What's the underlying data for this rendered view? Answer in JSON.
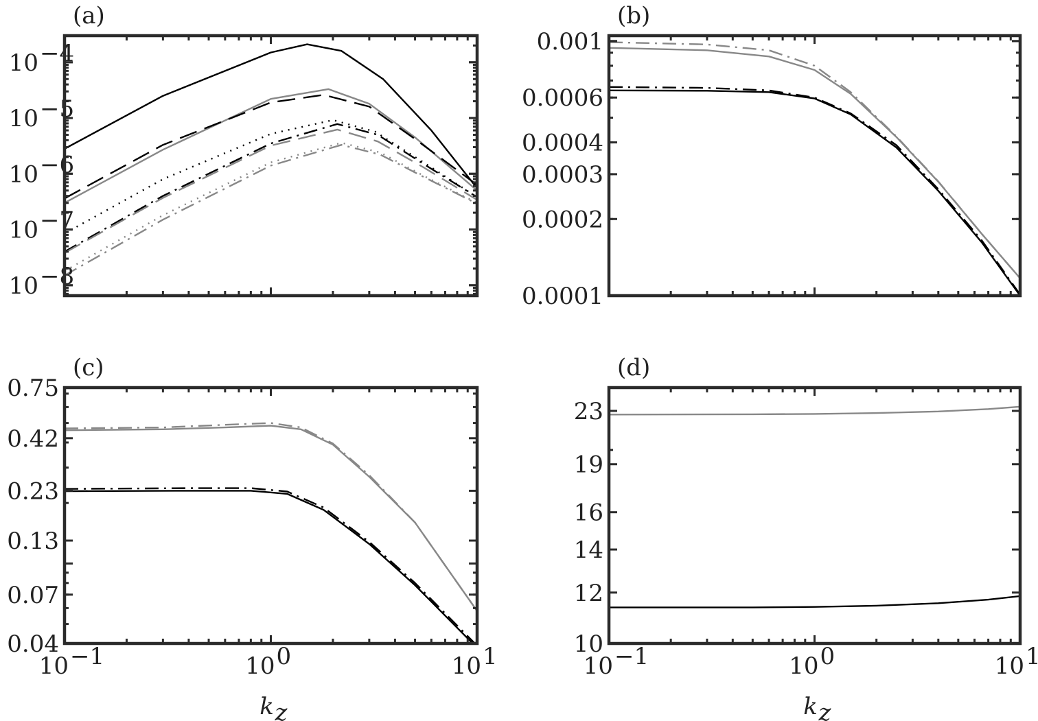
{
  "chart_data": [
    {
      "panel": "(a)",
      "type": "line",
      "xscale": "log",
      "yscale": "log",
      "xlim": [
        0.1,
        10
      ],
      "ylim": [
        6.5e-09,
        0.0003
      ],
      "xlabel": "",
      "ylabel": "",
      "yticks": [
        {
          "value": 0.0001,
          "label": "10",
          "exp": "−4"
        },
        {
          "value": 1e-05,
          "label": "10",
          "exp": "−5"
        },
        {
          "value": 1e-06,
          "label": "10",
          "exp": "−6"
        },
        {
          "value": 1e-07,
          "label": "10",
          "exp": "−7"
        },
        {
          "value": 1e-08,
          "label": "10",
          "exp": "−8"
        }
      ],
      "xticks": [],
      "series": [
        {
          "name": "black-solid",
          "color": "#000000",
          "dash": "",
          "points": [
            [
              0.1,
              2.8e-06
            ],
            [
              0.3,
              2.5e-05
            ],
            [
              1.0,
              0.00015
            ],
            [
              1.5,
              0.00021
            ],
            [
              2.2,
              0.00016
            ],
            [
              3.5,
              5e-05
            ],
            [
              6.0,
              6e-06
            ],
            [
              10,
              5.5e-07
            ]
          ]
        },
        {
          "name": "gray-solid",
          "color": "#888888",
          "dash": "",
          "points": [
            [
              0.1,
              3e-07
            ],
            [
              0.3,
              2.7e-06
            ],
            [
              1.0,
              2.2e-05
            ],
            [
              1.9,
              3.3e-05
            ],
            [
              3.0,
              1.8e-05
            ],
            [
              5.0,
              4.5e-06
            ],
            [
              10,
              5e-07
            ]
          ]
        },
        {
          "name": "black-dashed",
          "color": "#000000",
          "dash": "26 12",
          "points": [
            [
              0.1,
              3.6e-07
            ],
            [
              0.3,
              3.3e-06
            ],
            [
              1.0,
              1.9e-05
            ],
            [
              1.8,
              2.6e-05
            ],
            [
              3.0,
              1.6e-05
            ],
            [
              5.0,
              4.2e-06
            ],
            [
              10,
              6.3e-07
            ]
          ]
        },
        {
          "name": "black-dotted",
          "color": "#000000",
          "dash": "2 8",
          "points": [
            [
              0.1,
              8.5e-08
            ],
            [
              0.3,
              8e-07
            ],
            [
              1.0,
              5.2e-06
            ],
            [
              2.0,
              9.2e-06
            ],
            [
              3.2,
              5.7e-06
            ],
            [
              5.5,
              1.6e-06
            ],
            [
              10,
              3.8e-07
            ]
          ]
        },
        {
          "name": "black-dashdot",
          "color": "#000000",
          "dash": "20 8 3 8",
          "points": [
            [
              0.1,
              4e-08
            ],
            [
              0.3,
              4e-07
            ],
            [
              1.0,
              3.5e-06
            ],
            [
              2.1,
              7.8e-06
            ],
            [
              3.3,
              5e-06
            ],
            [
              5.5,
              1.5e-06
            ],
            [
              10,
              3.8e-07
            ]
          ]
        },
        {
          "name": "gray-dashed",
          "color": "#888888",
          "dash": "26 12",
          "points": [
            [
              0.1,
              3.8e-08
            ],
            [
              0.3,
              3.7e-07
            ],
            [
              1.0,
              3.2e-06
            ],
            [
              2.1,
              6.2e-06
            ],
            [
              3.3,
              3.8e-06
            ],
            [
              5.5,
              1.3e-06
            ],
            [
              10,
              3.4e-07
            ]
          ]
        },
        {
          "name": "gray-dotted",
          "color": "#888888",
          "dash": "2 8",
          "points": [
            [
              0.1,
              1.8e-08
            ],
            [
              0.3,
              1.8e-07
            ],
            [
              1.0,
              1.6e-06
            ],
            [
              2.2,
              3.6e-06
            ],
            [
              3.4,
              2.4e-06
            ],
            [
              5.5,
              9.2e-07
            ],
            [
              10,
              3e-07
            ]
          ]
        },
        {
          "name": "gray-dashdot",
          "color": "#888888",
          "dash": "20 8 3 8",
          "points": [
            [
              0.1,
              1.5e-08
            ],
            [
              0.3,
              1.5e-07
            ],
            [
              1.0,
              1.4e-06
            ],
            [
              2.2,
              3.3e-06
            ],
            [
              3.4,
              2.2e-06
            ],
            [
              5.5,
              8.8e-07
            ],
            [
              10,
              2.9e-07
            ]
          ]
        }
      ]
    },
    {
      "panel": "(b)",
      "type": "line",
      "xscale": "log",
      "yscale": "log",
      "xlim": [
        0.1,
        10
      ],
      "ylim": [
        0.0001,
        0.00105
      ],
      "xlabel": "",
      "ylabel": "",
      "yticks": [
        {
          "value": 0.001,
          "label": "0.001"
        },
        {
          "value": 0.0006,
          "label": "0.0006"
        },
        {
          "value": 0.0004,
          "label": "0.0004"
        },
        {
          "value": 0.0003,
          "label": "0.0003"
        },
        {
          "value": 0.0002,
          "label": "0.0002"
        },
        {
          "value": 0.0001,
          "label": "0.0001"
        }
      ],
      "xticks": [],
      "series": [
        {
          "name": "gray-solid",
          "color": "#888888",
          "dash": "",
          "points": [
            [
              0.1,
              0.00094
            ],
            [
              0.3,
              0.00092
            ],
            [
              0.6,
              0.00087
            ],
            [
              1.0,
              0.00077
            ],
            [
              1.5,
              0.00062
            ],
            [
              2.5,
              0.00042
            ],
            [
              4.0,
              0.00028
            ],
            [
              6.5,
              0.000175
            ],
            [
              10,
              0.000117
            ]
          ]
        },
        {
          "name": "gray-dashdot",
          "color": "#888888",
          "dash": "20 8 3 8",
          "points": [
            [
              0.1,
              0.00099
            ],
            [
              0.3,
              0.00097
            ],
            [
              0.6,
              0.00092
            ],
            [
              1.0,
              0.0008
            ],
            [
              1.5,
              0.00063
            ],
            [
              2.5,
              0.000422
            ],
            [
              4.0,
              0.000281
            ],
            [
              6.5,
              0.000175
            ],
            [
              10,
              0.000117
            ]
          ]
        },
        {
          "name": "black-dashdot",
          "color": "#000000",
          "dash": "20 8 3 8",
          "points": [
            [
              0.1,
              0.00066
            ],
            [
              0.3,
              0.000655
            ],
            [
              0.6,
              0.00064
            ],
            [
              1.0,
              0.0006
            ],
            [
              1.5,
              0.00052
            ],
            [
              2.5,
              0.00039
            ],
            [
              4.0,
              0.000262
            ],
            [
              6.5,
              0.000165
            ],
            [
              10,
              0.000101
            ]
          ]
        },
        {
          "name": "black-solid",
          "color": "#000000",
          "dash": "",
          "points": [
            [
              0.1,
              0.00064
            ],
            [
              0.3,
              0.000638
            ],
            [
              0.6,
              0.00063
            ],
            [
              1.0,
              0.000595
            ],
            [
              1.5,
              0.000515
            ],
            [
              2.5,
              0.000382
            ],
            [
              4.0,
              0.000258
            ],
            [
              6.5,
              0.000162
            ],
            [
              10,
              0.0001
            ]
          ]
        }
      ]
    },
    {
      "panel": "(c)",
      "type": "line",
      "xscale": "log",
      "yscale": "log",
      "xlim": [
        0.1,
        10
      ],
      "ylim": [
        0.04,
        0.75
      ],
      "xlabel": "k_z",
      "ylabel": "",
      "yticks": [
        {
          "value": 0.75,
          "label": "0.75"
        },
        {
          "value": 0.42,
          "label": "0.42"
        },
        {
          "value": 0.23,
          "label": "0.23"
        },
        {
          "value": 0.13,
          "label": "0.13"
        },
        {
          "value": 0.07,
          "label": "0.07"
        },
        {
          "value": 0.04,
          "label": "0.04"
        }
      ],
      "xticks": [
        {
          "value": 0.1,
          "label": "10",
          "exp": "−1"
        },
        {
          "value": 1,
          "label": "10",
          "exp": "0"
        },
        {
          "value": 10,
          "label": "10",
          "exp": "1"
        }
      ],
      "series": [
        {
          "name": "gray-dashed",
          "color": "#888888",
          "dash": "20 8 3 8",
          "points": [
            [
              0.1,
              0.47
            ],
            [
              0.3,
              0.475
            ],
            [
              0.6,
              0.49
            ],
            [
              1.0,
              0.5
            ],
            [
              1.4,
              0.475
            ],
            [
              2.0,
              0.395
            ],
            [
              3.0,
              0.275
            ],
            [
              5.0,
              0.16
            ],
            [
              10,
              0.058
            ]
          ]
        },
        {
          "name": "gray-solid",
          "color": "#888888",
          "dash": "",
          "points": [
            [
              0.1,
              0.46
            ],
            [
              0.3,
              0.465
            ],
            [
              0.6,
              0.475
            ],
            [
              1.0,
              0.485
            ],
            [
              1.4,
              0.465
            ],
            [
              2.0,
              0.39
            ],
            [
              3.0,
              0.27
            ],
            [
              5.0,
              0.16
            ],
            [
              10,
              0.058
            ]
          ]
        },
        {
          "name": "black-dashdot",
          "color": "#000000",
          "dash": "20 8 3 8",
          "points": [
            [
              0.1,
              0.235
            ],
            [
              0.4,
              0.237
            ],
            [
              0.8,
              0.237
            ],
            [
              1.2,
              0.228
            ],
            [
              1.8,
              0.19
            ],
            [
              3.0,
              0.128
            ],
            [
              5.0,
              0.08
            ],
            [
              10,
              0.039
            ]
          ]
        },
        {
          "name": "black-solid",
          "color": "#000000",
          "dash": "",
          "points": [
            [
              0.1,
              0.229
            ],
            [
              0.4,
              0.23
            ],
            [
              0.8,
              0.23
            ],
            [
              1.2,
              0.222
            ],
            [
              1.8,
              0.185
            ],
            [
              3.0,
              0.125
            ],
            [
              5.0,
              0.078
            ],
            [
              10,
              0.038
            ]
          ]
        }
      ]
    },
    {
      "panel": "(d)",
      "type": "line",
      "xscale": "log",
      "yscale": "log",
      "xlim": [
        0.1,
        10
      ],
      "ylim": [
        10,
        25
      ],
      "xlabel": "k_z",
      "ylabel": "",
      "yticks": [
        {
          "value": 23,
          "label": "23"
        },
        {
          "value": 19,
          "label": "19"
        },
        {
          "value": 16,
          "label": "16"
        },
        {
          "value": 14,
          "label": "14"
        },
        {
          "value": 12,
          "label": "12"
        },
        {
          "value": 10,
          "label": "10"
        }
      ],
      "xticks": [
        {
          "value": 0.1,
          "label": "10",
          "exp": "−1"
        },
        {
          "value": 1,
          "label": "10",
          "exp": "0"
        },
        {
          "value": 10,
          "label": "10",
          "exp": "1"
        }
      ],
      "series": [
        {
          "name": "gray-solid",
          "color": "#888888",
          "dash": "",
          "points": [
            [
              0.1,
              22.7
            ],
            [
              0.5,
              22.72
            ],
            [
              1.0,
              22.75
            ],
            [
              2.0,
              22.82
            ],
            [
              4.0,
              22.95
            ],
            [
              7.0,
              23.15
            ],
            [
              10,
              23.35
            ]
          ]
        },
        {
          "name": "black-solid",
          "color": "#000000",
          "dash": "",
          "points": [
            [
              0.1,
              11.38
            ],
            [
              0.5,
              11.38
            ],
            [
              1.0,
              11.4
            ],
            [
              2.0,
              11.45
            ],
            [
              4.0,
              11.55
            ],
            [
              7.0,
              11.7
            ],
            [
              10,
              11.85
            ]
          ]
        }
      ]
    }
  ]
}
